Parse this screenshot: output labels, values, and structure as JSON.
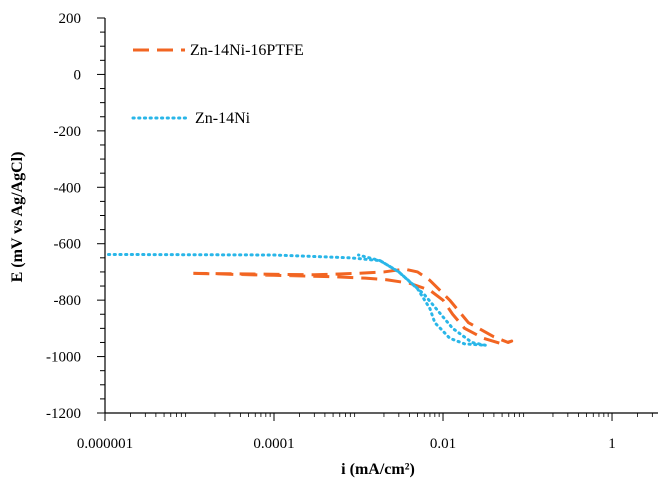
{
  "chart_data": {
    "type": "line",
    "xlabel": "i (mA/cm²)",
    "ylabel": "E (mV vs Ag/AgCl)",
    "x_scale": "log",
    "xlim": [
      1e-06,
      3.5
    ],
    "ylim": [
      -1200,
      200
    ],
    "x_ticks": [
      1e-06,
      0.0001,
      0.01,
      1
    ],
    "x_tick_labels": [
      "0.000001",
      "0.0001",
      "0.01",
      "1"
    ],
    "y_ticks": [
      -1200,
      -1000,
      -800,
      -600,
      -400,
      -200,
      0,
      200
    ],
    "y_tick_labels": [
      "-1200",
      "-1000",
      "-800",
      "-600",
      "-400",
      "-200",
      "0",
      "200"
    ],
    "grid": false,
    "legend_position": "top-left",
    "series": [
      {
        "name": "Zn-14Ni-16PTFE",
        "color": "#f26522",
        "style": "dashed",
        "x": [
          1.11e-05,
          0.0001,
          0.0005,
          0.0012,
          0.0022,
          0.004,
          0.007,
          0.01,
          0.013,
          0.018,
          0.03,
          0.05,
          0.065,
          0.059,
          0.04,
          0.02,
          0.012,
          0.007,
          0.005,
          0.0035,
          0.002,
          0.001,
          0.0003,
          1.11e-05
        ],
        "y": [
          -705,
          -712,
          -717,
          -722,
          -728,
          -740,
          -765,
          -800,
          -850,
          -900,
          -935,
          -955,
          -945,
          -950,
          -930,
          -880,
          -800,
          -730,
          -700,
          -690,
          -700,
          -705,
          -710,
          -705
        ]
      },
      {
        "name": "Zn-14Ni",
        "color": "#29b6e8",
        "style": "dotted",
        "x": [
          1.1e-06,
          0.0001,
          0.0008,
          0.0018,
          0.003,
          0.005,
          0.007,
          0.008,
          0.01,
          0.012,
          0.018,
          0.032,
          0.022,
          0.013,
          0.006,
          0.003,
          0.0018,
          0.001
        ],
        "y": [
          -638,
          -640,
          -650,
          -660,
          -700,
          -760,
          -830,
          -880,
          -910,
          -935,
          -955,
          -960,
          -950,
          -900,
          -780,
          -700,
          -660,
          -640
        ]
      }
    ]
  }
}
